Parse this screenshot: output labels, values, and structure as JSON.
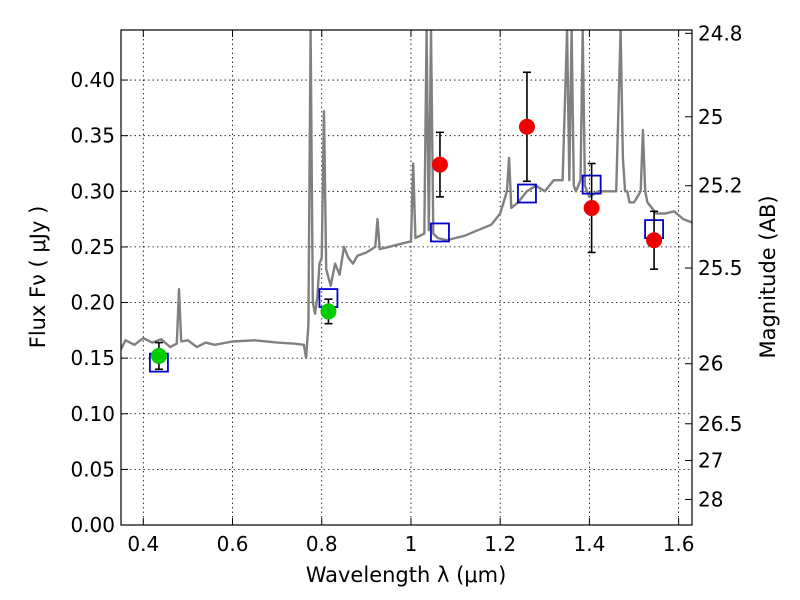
{
  "chart_data": {
    "type": "scatter",
    "xlabel": "Wavelength  λ (μm)",
    "ylabel": "Flux  Fν ( μJy )",
    "y2label": "Magnitude (AB)",
    "xlim": [
      0.35,
      1.63
    ],
    "ylim": [
      0.0,
      0.445
    ],
    "grid": true,
    "x_ticks": [
      0.4,
      0.6,
      0.8,
      1.0,
      1.2,
      1.4,
      1.6
    ],
    "x_tick_labels": [
      "0.4",
      "0.6",
      "0.8",
      "1",
      "1.2",
      "1.4",
      "1.6"
    ],
    "y_ticks": [
      0.0,
      0.05,
      0.1,
      0.15,
      0.2,
      0.25,
      0.3,
      0.35,
      0.4
    ],
    "y_tick_labels": [
      "0.00",
      "0.05",
      "0.10",
      "0.15",
      "0.20",
      "0.25",
      "0.30",
      "0.35",
      "0.40"
    ],
    "y2_ticks": [
      {
        "label": "24.8",
        "flux": 0.442
      },
      {
        "label": "25",
        "flux": 0.367
      },
      {
        "label": "25.2",
        "flux": 0.305
      },
      {
        "label": "25.5",
        "flux": 0.231
      },
      {
        "label": "26",
        "flux": 0.145
      },
      {
        "label": "26.5",
        "flux": 0.091
      },
      {
        "label": "27",
        "flux": 0.058
      },
      {
        "label": "28",
        "flux": 0.023
      }
    ],
    "series": [
      {
        "marker": "circle",
        "color": "#00cc00",
        "points": [
          {
            "x": 0.435,
            "y": 0.152,
            "yerr": 0.012
          },
          {
            "x": 0.815,
            "y": 0.192,
            "yerr": 0.011
          }
        ]
      },
      {
        "marker": "circle",
        "color": "#ee0000",
        "points": [
          {
            "x": 1.065,
            "y": 0.324,
            "yerr": 0.029
          },
          {
            "x": 1.26,
            "y": 0.358,
            "yerr": 0.049
          },
          {
            "x": 1.405,
            "y": 0.285,
            "yerr": 0.04
          },
          {
            "x": 1.545,
            "y": 0.256,
            "yerr": 0.026
          }
        ]
      },
      {
        "marker": "open-square",
        "color": "#0000cc",
        "points": [
          {
            "x": 0.435,
            "y": 0.146
          },
          {
            "x": 0.815,
            "y": 0.204
          },
          {
            "x": 1.065,
            "y": 0.263
          },
          {
            "x": 1.26,
            "y": 0.298
          },
          {
            "x": 1.405,
            "y": 0.306
          },
          {
            "x": 1.545,
            "y": 0.266
          }
        ]
      },
      {
        "type": "line",
        "color": "#808080",
        "x": [
          0.35,
          0.36,
          0.38,
          0.4,
          0.42,
          0.44,
          0.46,
          0.475,
          0.48,
          0.485,
          0.5,
          0.52,
          0.54,
          0.56,
          0.6,
          0.65,
          0.7,
          0.74,
          0.76,
          0.765,
          0.77,
          0.775,
          0.78,
          0.785,
          0.79,
          0.795,
          0.8,
          0.805,
          0.81,
          0.82,
          0.83,
          0.84,
          0.85,
          0.86,
          0.87,
          0.88,
          0.9,
          0.92,
          0.925,
          0.93,
          0.95,
          0.97,
          1.0,
          1.005,
          1.01,
          1.02,
          1.03,
          1.035,
          1.04,
          1.045,
          1.05,
          1.06,
          1.08,
          1.1,
          1.12,
          1.15,
          1.18,
          1.2,
          1.215,
          1.22,
          1.225,
          1.24,
          1.26,
          1.28,
          1.3,
          1.32,
          1.34,
          1.35,
          1.355,
          1.36,
          1.365,
          1.37,
          1.38,
          1.385,
          1.39,
          1.4,
          1.42,
          1.44,
          1.46,
          1.47,
          1.475,
          1.48,
          1.485,
          1.49,
          1.5,
          1.515,
          1.52,
          1.525,
          1.53,
          1.55,
          1.57,
          1.59,
          1.61,
          1.63
        ],
        "y": [
          0.158,
          0.166,
          0.162,
          0.168,
          0.164,
          0.167,
          0.16,
          0.163,
          0.212,
          0.165,
          0.166,
          0.16,
          0.164,
          0.162,
          0.165,
          0.166,
          0.164,
          0.163,
          0.162,
          0.15,
          0.18,
          0.445,
          0.2,
          0.19,
          0.205,
          0.235,
          0.24,
          0.372,
          0.23,
          0.215,
          0.235,
          0.225,
          0.25,
          0.24,
          0.235,
          0.242,
          0.245,
          0.25,
          0.275,
          0.248,
          0.25,
          0.252,
          0.255,
          0.325,
          0.258,
          0.26,
          0.262,
          0.445,
          0.265,
          0.445,
          0.262,
          0.258,
          0.256,
          0.258,
          0.26,
          0.265,
          0.27,
          0.28,
          0.3,
          0.33,
          0.285,
          0.29,
          0.3,
          0.305,
          0.3,
          0.31,
          0.31,
          0.445,
          0.31,
          0.445,
          0.305,
          0.3,
          0.31,
          0.445,
          0.305,
          0.295,
          0.3,
          0.3,
          0.3,
          0.445,
          0.33,
          0.3,
          0.3,
          0.29,
          0.29,
          0.3,
          0.355,
          0.3,
          0.29,
          0.28,
          0.28,
          0.282,
          0.275,
          0.272
        ]
      }
    ]
  }
}
